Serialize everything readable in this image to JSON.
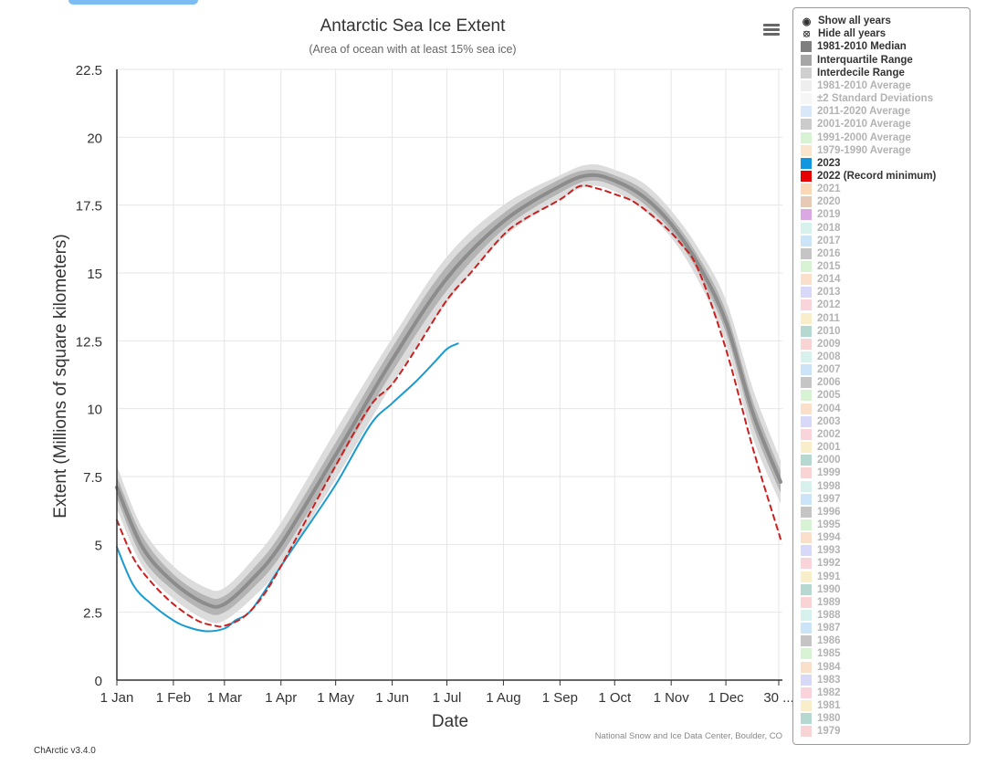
{
  "chart_data": {
    "type": "line",
    "title": "Antarctic Sea Ice Extent",
    "subtitle": "(Area of ocean with at least 15% sea ice)",
    "xlabel": "Date",
    "ylabel": "Extent (Millions of square kilometers)",
    "x_ticks": [
      "1 Jan",
      "1 Feb",
      "1 Mar",
      "1 Apr",
      "1 May",
      "1 Jun",
      "1 Jul",
      "1 Aug",
      "1 Sep",
      "1 Oct",
      "1 Nov",
      "1 Dec",
      "30 ..."
    ],
    "x_tick_days": [
      1,
      32,
      60,
      91,
      121,
      152,
      182,
      213,
      244,
      274,
      305,
      335,
      364
    ],
    "xlim": [
      1,
      366
    ],
    "ylim": [
      0,
      22.5
    ],
    "y_ticks": [
      0,
      2.5,
      5,
      7.5,
      10,
      12.5,
      15,
      17.5,
      20,
      22.5
    ],
    "grid": true,
    "series": [
      {
        "name": "1981-2010 Median",
        "color": "#8c8c8c",
        "style": "solid",
        "x": [
          1,
          15,
          32,
          50,
          60,
          75,
          91,
          121,
          152,
          182,
          213,
          244,
          260,
          274,
          290,
          305,
          320,
          335,
          350,
          365
        ],
        "y": [
          7.1,
          4.9,
          3.6,
          2.8,
          2.8,
          3.7,
          5.0,
          8.3,
          11.8,
          14.8,
          16.9,
          18.2,
          18.6,
          18.4,
          17.8,
          16.8,
          15.3,
          13.2,
          9.8,
          7.3
        ]
      },
      {
        "name": "2023",
        "color": "#1a9bd0",
        "style": "solid",
        "x": [
          1,
          10,
          20,
          32,
          40,
          50,
          60,
          66,
          75,
          91,
          100,
          121,
          140,
          152,
          165,
          175,
          182,
          188
        ],
        "y": [
          4.9,
          3.5,
          2.8,
          2.2,
          1.95,
          1.8,
          1.9,
          2.2,
          2.6,
          4.2,
          5.1,
          7.2,
          9.4,
          10.2,
          11.0,
          11.7,
          12.2,
          12.4
        ]
      },
      {
        "name": "2022 (Record minimum)",
        "color": "#cc1f1f",
        "style": "dashed",
        "x": [
          1,
          10,
          20,
          32,
          45,
          55,
          60,
          70,
          80,
          91,
          121,
          140,
          152,
          165,
          182,
          195,
          213,
          225,
          244,
          255,
          265,
          274,
          285,
          300,
          310,
          320,
          335,
          350,
          365
        ],
        "y": [
          5.9,
          4.5,
          3.6,
          2.8,
          2.2,
          2.0,
          2.0,
          2.3,
          3.0,
          4.2,
          7.9,
          10.1,
          10.9,
          12.2,
          14.0,
          15.0,
          16.4,
          17.0,
          17.7,
          18.2,
          18.1,
          17.9,
          17.6,
          16.8,
          16.1,
          15.1,
          12.2,
          8.5,
          5.2
        ]
      }
    ],
    "bands": [
      {
        "name": "Interdecile Range",
        "color": "#dcdcdc",
        "x": [
          1,
          15,
          32,
          50,
          60,
          75,
          91,
          121,
          152,
          182,
          213,
          244,
          260,
          274,
          290,
          305,
          320,
          335,
          350,
          365
        ],
        "low": [
          6.3,
          4.2,
          3.0,
          2.2,
          2.2,
          3.0,
          4.2,
          7.4,
          10.9,
          13.9,
          16.3,
          17.7,
          18.2,
          18.0,
          17.3,
          16.3,
          14.7,
          12.4,
          8.9,
          6.5
        ],
        "high": [
          7.9,
          5.6,
          4.2,
          3.4,
          3.4,
          4.4,
          5.8,
          9.2,
          12.6,
          15.6,
          17.5,
          18.6,
          19.0,
          18.8,
          18.3,
          17.3,
          15.9,
          14.0,
          10.7,
          8.1
        ]
      },
      {
        "name": "Interquartile Range",
        "color": "#b4b4b4",
        "x": [
          1,
          15,
          32,
          50,
          60,
          75,
          91,
          121,
          152,
          182,
          213,
          244,
          260,
          274,
          290,
          305,
          320,
          335,
          350,
          365
        ],
        "low": [
          6.7,
          4.5,
          3.3,
          2.5,
          2.5,
          3.35,
          4.6,
          7.85,
          11.35,
          14.35,
          16.6,
          17.95,
          18.4,
          18.2,
          17.55,
          16.55,
          15.0,
          12.8,
          9.35,
          6.9
        ],
        "high": [
          7.5,
          5.3,
          3.9,
          3.1,
          3.1,
          4.05,
          5.4,
          8.75,
          12.25,
          15.25,
          17.2,
          18.45,
          18.8,
          18.6,
          18.05,
          17.05,
          15.6,
          13.6,
          10.25,
          7.7
        ]
      }
    ]
  },
  "ui": {
    "credit": "National Snow and Ice Data Center, Boulder, CO",
    "version": "ChArctic v3.4.0",
    "menu_icon": "hamburger-menu-icon"
  },
  "legend": {
    "controls": [
      {
        "label": "Show all years",
        "icon": "eye-icon"
      },
      {
        "label": "Hide all years",
        "icon": "eye-slash-icon"
      }
    ],
    "items": [
      {
        "label": "1981-2010 Median",
        "color": "#7f7f7f",
        "active": true
      },
      {
        "label": "Interquartile Range",
        "color": "#a6a6a6",
        "active": true
      },
      {
        "label": "Interdecile Range",
        "color": "#cfcfcf",
        "active": true
      },
      {
        "label": "1981-2010 Average",
        "color": "#d9d9d9",
        "active": false
      },
      {
        "label": "±2 Standard Deviations",
        "color": "#ececec",
        "active": false
      },
      {
        "label": "2011-2020 Average",
        "color": "#a9cdf0",
        "active": false
      },
      {
        "label": "2001-2010 Average",
        "color": "#8c8c8c",
        "active": false
      },
      {
        "label": "1991-2000 Average",
        "color": "#a9e3a0",
        "active": false
      },
      {
        "label": "1979-1990 Average",
        "color": "#f7c48f",
        "active": false
      },
      {
        "label": "2023",
        "color": "#1396e0",
        "active": true
      },
      {
        "label": "2022 (Record minimum)",
        "color": "#e60000",
        "active": true
      },
      {
        "label": "2021",
        "color": "#f5a95b",
        "active": false
      },
      {
        "label": "2020",
        "color": "#c98a5a",
        "active": false
      },
      {
        "label": "2019",
        "color": "#b23fc2",
        "active": false
      },
      {
        "label": "2018",
        "color": "#a6e0d8",
        "active": false
      },
      {
        "label": "2017",
        "color": "#8cc3f0",
        "active": false
      },
      {
        "label": "2016",
        "color": "#7f7f7f",
        "active": false
      },
      {
        "label": "2015",
        "color": "#a9e3a0",
        "active": false
      },
      {
        "label": "2014",
        "color": "#f5b98a",
        "active": false
      },
      {
        "label": "2013",
        "color": "#a9a8f0",
        "active": false
      },
      {
        "label": "2012",
        "color": "#f5a0b0",
        "active": false
      },
      {
        "label": "2011",
        "color": "#f0dc8a",
        "active": false
      },
      {
        "label": "2010",
        "color": "#5aa898",
        "active": false
      },
      {
        "label": "2009",
        "color": "#f2a0a0",
        "active": false
      },
      {
        "label": "2008",
        "color": "#a6e0d8",
        "active": false
      },
      {
        "label": "2007",
        "color": "#8cc3f0",
        "active": false
      },
      {
        "label": "2006",
        "color": "#7f7f7f",
        "active": false
      },
      {
        "label": "2005",
        "color": "#a9e3a0",
        "active": false
      },
      {
        "label": "2004",
        "color": "#f5b98a",
        "active": false
      },
      {
        "label": "2003",
        "color": "#a9a8f0",
        "active": false
      },
      {
        "label": "2002",
        "color": "#f5a0b0",
        "active": false
      },
      {
        "label": "2001",
        "color": "#f0dc8a",
        "active": false
      },
      {
        "label": "2000",
        "color": "#5aa898",
        "active": false
      },
      {
        "label": "1999",
        "color": "#f2a0a0",
        "active": false
      },
      {
        "label": "1998",
        "color": "#a6e0d8",
        "active": false
      },
      {
        "label": "1997",
        "color": "#8cc3f0",
        "active": false
      },
      {
        "label": "1996",
        "color": "#7f7f7f",
        "active": false
      },
      {
        "label": "1995",
        "color": "#a9e3a0",
        "active": false
      },
      {
        "label": "1994",
        "color": "#f5b98a",
        "active": false
      },
      {
        "label": "1993",
        "color": "#a9a8f0",
        "active": false
      },
      {
        "label": "1992",
        "color": "#f5a0b0",
        "active": false
      },
      {
        "label": "1991",
        "color": "#f0dc8a",
        "active": false
      },
      {
        "label": "1990",
        "color": "#5aa898",
        "active": false
      },
      {
        "label": "1989",
        "color": "#f2a0a0",
        "active": false
      },
      {
        "label": "1988",
        "color": "#a6e0d8",
        "active": false
      },
      {
        "label": "1987",
        "color": "#8cc3f0",
        "active": false
      },
      {
        "label": "1986",
        "color": "#7f7f7f",
        "active": false
      },
      {
        "label": "1985",
        "color": "#a9e3a0",
        "active": false
      },
      {
        "label": "1984",
        "color": "#f5b98a",
        "active": false
      },
      {
        "label": "1983",
        "color": "#a9a8f0",
        "active": false
      },
      {
        "label": "1982",
        "color": "#f5a0b0",
        "active": false
      },
      {
        "label": "1981",
        "color": "#f0dc8a",
        "active": false
      },
      {
        "label": "1980",
        "color": "#5aa898",
        "active": false
      },
      {
        "label": "1979",
        "color": "#f2a0a0",
        "active": false
      }
    ]
  }
}
